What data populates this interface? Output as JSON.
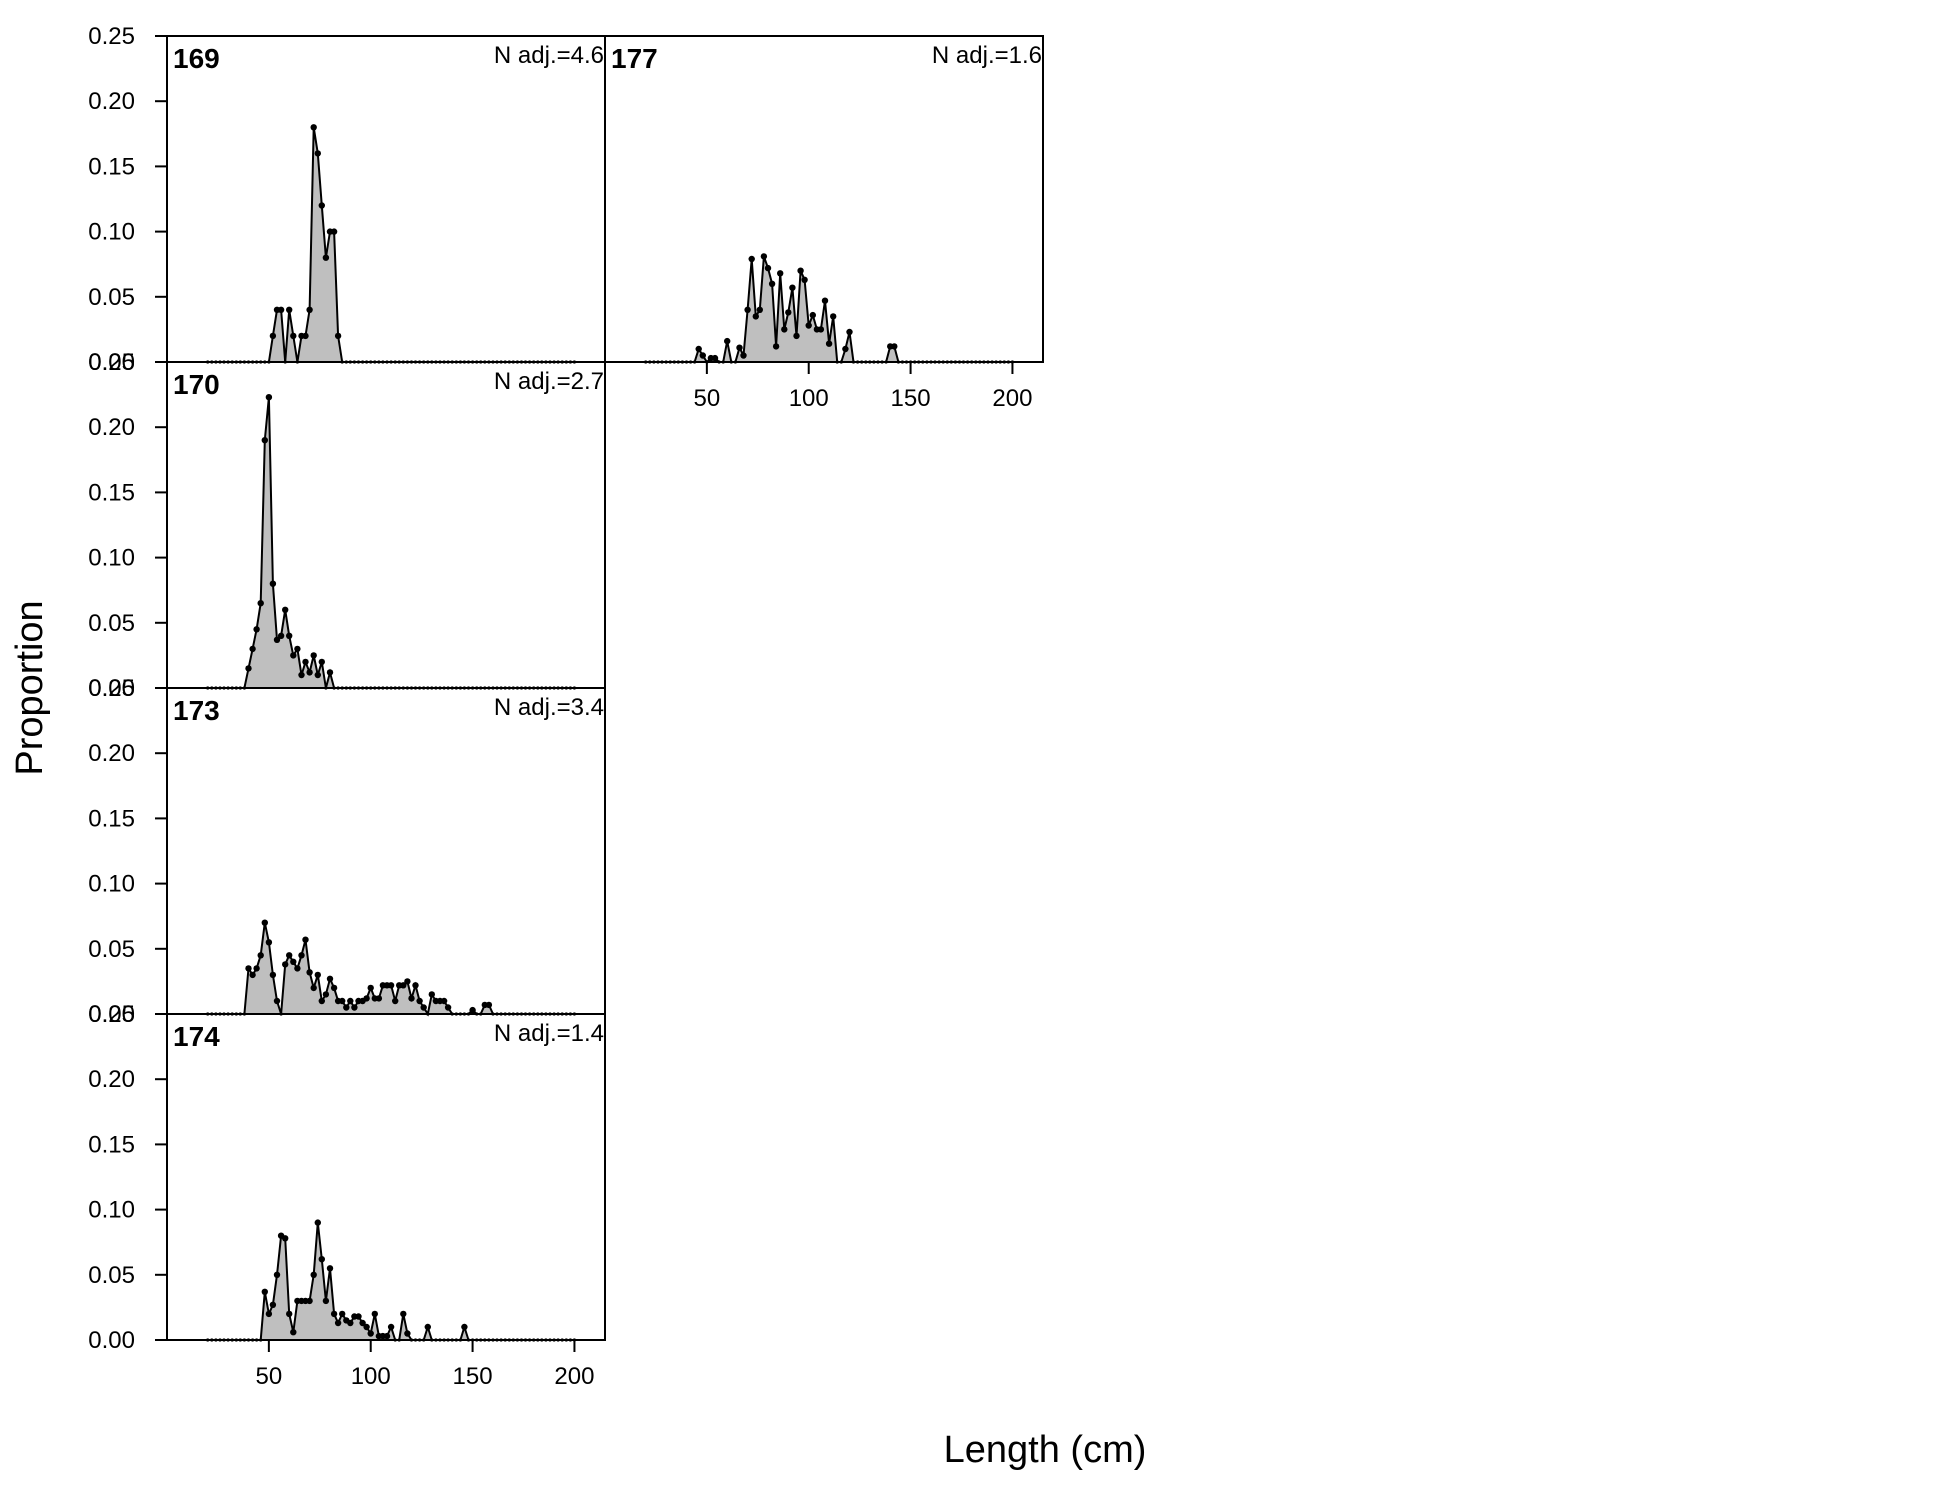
{
  "chart_data": {
    "type": "area",
    "xlabel": "Length (cm)",
    "ylabel": "Proportion",
    "xlim": [
      0,
      215
    ],
    "ylim": [
      0,
      0.25
    ],
    "x_ticks": [
      50,
      100,
      150,
      200
    ],
    "y_ticks": [
      "0.00",
      "0.05",
      "0.10",
      "0.15",
      "0.20",
      "0.25"
    ],
    "fill_color": "#bfbfbf",
    "line_color": "#000000",
    "x_range": [
      20,
      200
    ],
    "panels": [
      {
        "id": "169",
        "nadj": "N adj.=4.6",
        "points": [
          [
            52,
            0.02
          ],
          [
            54,
            0.04
          ],
          [
            56,
            0.04
          ],
          [
            58,
            0.0
          ],
          [
            60,
            0.04
          ],
          [
            62,
            0.02
          ],
          [
            64,
            0.0
          ],
          [
            66,
            0.02
          ],
          [
            68,
            0.02
          ],
          [
            70,
            0.04
          ],
          [
            72,
            0.18
          ],
          [
            74,
            0.16
          ],
          [
            76,
            0.12
          ],
          [
            78,
            0.08
          ],
          [
            80,
            0.1
          ],
          [
            82,
            0.1
          ],
          [
            84,
            0.02
          ]
        ]
      },
      {
        "id": "177",
        "nadj": "N adj.=1.6",
        "points": [
          [
            46,
            0.01
          ],
          [
            48,
            0.005
          ],
          [
            50,
            0.0
          ],
          [
            52,
            0.003
          ],
          [
            54,
            0.003
          ],
          [
            56,
            0.0
          ],
          [
            58,
            0.0
          ],
          [
            60,
            0.016
          ],
          [
            62,
            0.0
          ],
          [
            64,
            0.0
          ],
          [
            66,
            0.011
          ],
          [
            68,
            0.005
          ],
          [
            70,
            0.04
          ],
          [
            72,
            0.079
          ],
          [
            74,
            0.035
          ],
          [
            76,
            0.04
          ],
          [
            78,
            0.081
          ],
          [
            80,
            0.072
          ],
          [
            82,
            0.06
          ],
          [
            84,
            0.012
          ],
          [
            86,
            0.068
          ],
          [
            88,
            0.025
          ],
          [
            90,
            0.038
          ],
          [
            92,
            0.057
          ],
          [
            94,
            0.02
          ],
          [
            96,
            0.07
          ],
          [
            98,
            0.063
          ],
          [
            100,
            0.028
          ],
          [
            102,
            0.036
          ],
          [
            104,
            0.025
          ],
          [
            106,
            0.025
          ],
          [
            108,
            0.047
          ],
          [
            110,
            0.014
          ],
          [
            112,
            0.035
          ],
          [
            114,
            0.0
          ],
          [
            116,
            0.0
          ],
          [
            118,
            0.01
          ],
          [
            120,
            0.023
          ],
          [
            122,
            0.0
          ],
          [
            140,
            0.012
          ],
          [
            142,
            0.012
          ]
        ]
      },
      {
        "id": "170",
        "nadj": "N adj.=2.7",
        "points": [
          [
            40,
            0.015
          ],
          [
            42,
            0.03
          ],
          [
            44,
            0.045
          ],
          [
            46,
            0.065
          ],
          [
            48,
            0.19
          ],
          [
            50,
            0.223
          ],
          [
            52,
            0.08
          ],
          [
            54,
            0.037
          ],
          [
            56,
            0.04
          ],
          [
            58,
            0.06
          ],
          [
            60,
            0.04
          ],
          [
            62,
            0.025
          ],
          [
            64,
            0.03
          ],
          [
            66,
            0.01
          ],
          [
            68,
            0.02
          ],
          [
            70,
            0.012
          ],
          [
            72,
            0.025
          ],
          [
            74,
            0.01
          ],
          [
            76,
            0.02
          ],
          [
            78,
            0.0
          ],
          [
            80,
            0.012
          ],
          [
            82,
            0.0
          ]
        ]
      },
      {
        "id": "173",
        "nadj": "N adj.=3.4",
        "points": [
          [
            40,
            0.035
          ],
          [
            42,
            0.03
          ],
          [
            44,
            0.035
          ],
          [
            46,
            0.045
          ],
          [
            48,
            0.07
          ],
          [
            50,
            0.055
          ],
          [
            52,
            0.03
          ],
          [
            54,
            0.01
          ],
          [
            56,
            0.0
          ],
          [
            58,
            0.038
          ],
          [
            60,
            0.045
          ],
          [
            62,
            0.04
          ],
          [
            64,
            0.035
          ],
          [
            66,
            0.045
          ],
          [
            68,
            0.057
          ],
          [
            70,
            0.032
          ],
          [
            72,
            0.02
          ],
          [
            74,
            0.03
          ],
          [
            76,
            0.01
          ],
          [
            78,
            0.015
          ],
          [
            80,
            0.027
          ],
          [
            82,
            0.02
          ],
          [
            84,
            0.01
          ],
          [
            86,
            0.01
          ],
          [
            88,
            0.005
          ],
          [
            90,
            0.01
          ],
          [
            92,
            0.005
          ],
          [
            94,
            0.01
          ],
          [
            96,
            0.01
          ],
          [
            98,
            0.012
          ],
          [
            100,
            0.02
          ],
          [
            102,
            0.012
          ],
          [
            104,
            0.012
          ],
          [
            106,
            0.022
          ],
          [
            108,
            0.022
          ],
          [
            110,
            0.022
          ],
          [
            112,
            0.01
          ],
          [
            114,
            0.022
          ],
          [
            116,
            0.022
          ],
          [
            118,
            0.025
          ],
          [
            120,
            0.012
          ],
          [
            122,
            0.022
          ],
          [
            124,
            0.01
          ],
          [
            126,
            0.005
          ],
          [
            128,
            0.0
          ],
          [
            130,
            0.015
          ],
          [
            132,
            0.01
          ],
          [
            134,
            0.01
          ],
          [
            136,
            0.01
          ],
          [
            138,
            0.005
          ],
          [
            140,
            0.0
          ],
          [
            142,
            0.0
          ],
          [
            146,
            0.0
          ],
          [
            148,
            0.0
          ],
          [
            150,
            0.003
          ],
          [
            152,
            0.0
          ],
          [
            154,
            0.0
          ],
          [
            156,
            0.007
          ],
          [
            158,
            0.007
          ]
        ]
      },
      {
        "id": "174",
        "nadj": "N adj.=1.4",
        "points": [
          [
            48,
            0.037
          ],
          [
            50,
            0.02
          ],
          [
            52,
            0.027
          ],
          [
            54,
            0.05
          ],
          [
            56,
            0.08
          ],
          [
            58,
            0.078
          ],
          [
            60,
            0.02
          ],
          [
            62,
            0.006
          ],
          [
            64,
            0.03
          ],
          [
            66,
            0.03
          ],
          [
            68,
            0.03
          ],
          [
            70,
            0.03
          ],
          [
            72,
            0.05
          ],
          [
            74,
            0.09
          ],
          [
            76,
            0.062
          ],
          [
            78,
            0.03
          ],
          [
            80,
            0.055
          ],
          [
            82,
            0.02
          ],
          [
            84,
            0.013
          ],
          [
            86,
            0.02
          ],
          [
            88,
            0.015
          ],
          [
            90,
            0.013
          ],
          [
            92,
            0.018
          ],
          [
            94,
            0.018
          ],
          [
            96,
            0.013
          ],
          [
            98,
            0.01
          ],
          [
            100,
            0.005
          ],
          [
            102,
            0.02
          ],
          [
            104,
            0.003
          ],
          [
            106,
            0.003
          ],
          [
            108,
            0.003
          ],
          [
            110,
            0.01
          ],
          [
            112,
            0.0
          ],
          [
            114,
            0.0
          ],
          [
            116,
            0.02
          ],
          [
            118,
            0.005
          ],
          [
            120,
            0.0
          ],
          [
            128,
            0.01
          ],
          [
            130,
            0.0
          ],
          [
            146,
            0.01
          ],
          [
            148,
            0.0
          ]
        ]
      }
    ]
  }
}
